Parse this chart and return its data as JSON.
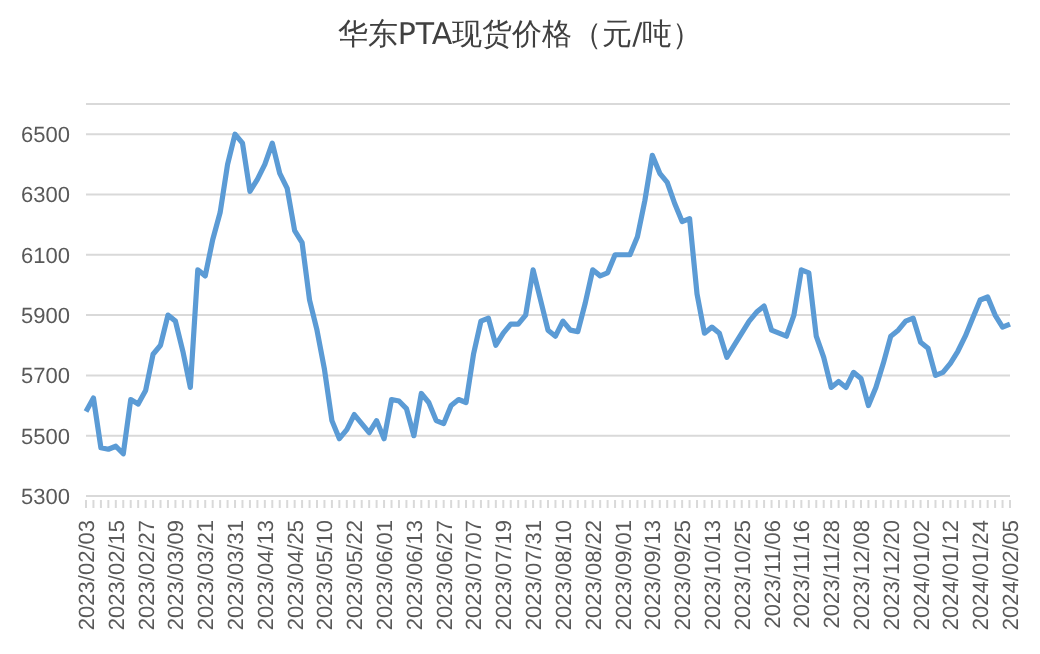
{
  "chart_data": {
    "type": "line",
    "title": "华东PTA现货价格（元/吨）",
    "categories": [
      "2023/02/03",
      null,
      null,
      null,
      "2023/02/15",
      null,
      null,
      null,
      "2023/02/27",
      null,
      null,
      null,
      "2023/03/09",
      null,
      null,
      null,
      "2023/03/21",
      null,
      null,
      null,
      "2023/03/31",
      null,
      null,
      null,
      "2023/04/13",
      null,
      null,
      null,
      "2023/04/25",
      null,
      null,
      null,
      "2023/05/10",
      null,
      null,
      null,
      "2023/05/22",
      null,
      null,
      null,
      "2023/06/01",
      null,
      null,
      null,
      "2023/06/13",
      null,
      null,
      null,
      "2023/06/27",
      null,
      null,
      null,
      "2023/07/07",
      null,
      null,
      null,
      "2023/07/19",
      null,
      null,
      null,
      "2023/07/31",
      null,
      null,
      null,
      "2023/08/10",
      null,
      null,
      null,
      "2023/08/22",
      null,
      null,
      null,
      "2023/09/01",
      null,
      null,
      null,
      "2023/09/13",
      null,
      null,
      null,
      "2023/09/25",
      null,
      null,
      null,
      "2023/10/13",
      null,
      null,
      null,
      "2023/10/25",
      null,
      null,
      null,
      "2023/11/06",
      null,
      null,
      null,
      "2023/11/16",
      null,
      null,
      null,
      "2023/11/28",
      null,
      null,
      null,
      "2023/12/08",
      null,
      null,
      null,
      "2023/12/20",
      null,
      null,
      null,
      "2024/01/02",
      null,
      null,
      null,
      "2024/01/12",
      null,
      null,
      null,
      "2024/01/24",
      null,
      null,
      null,
      "2024/02/05"
    ],
    "series": [
      {
        "color": "#5b9bd5",
        "values": [
          5580,
          5625,
          5460,
          5455,
          5465,
          5440,
          5620,
          5605,
          5650,
          5770,
          5800,
          5900,
          5880,
          5780,
          5660,
          6050,
          6030,
          6150,
          6240,
          6400,
          6500,
          6470,
          6310,
          6350,
          6400,
          6470,
          6370,
          6320,
          6180,
          6140,
          5950,
          5850,
          5720,
          5550,
          5490,
          5520,
          5570,
          5540,
          5510,
          5550,
          5490,
          5620,
          5615,
          5590,
          5500,
          5640,
          5610,
          5550,
          5540,
          5600,
          5620,
          5610,
          5770,
          5880,
          5890,
          5800,
          5840,
          5870,
          5870,
          5900,
          6050,
          5950,
          5850,
          5830,
          5880,
          5850,
          5845,
          5940,
          6050,
          6030,
          6040,
          6100,
          6100,
          6100,
          6160,
          6280,
          6430,
          6370,
          6340,
          6270,
          6210,
          6220,
          5970,
          5840,
          5860,
          5840,
          5760,
          5800,
          5840,
          5880,
          5910,
          5930,
          5850,
          5840,
          5830,
          5900,
          6050,
          6040,
          5830,
          5760,
          5660,
          5680,
          5660,
          5710,
          5690,
          5600,
          5660,
          5740,
          5830,
          5850,
          5880,
          5890,
          5810,
          5790,
          5700,
          5710,
          5740,
          5780,
          5830,
          5890,
          5950,
          5960,
          5900,
          5860,
          5870
        ]
      }
    ],
    "ylim": [
      5300,
      6600
    ],
    "yticks": [
      5300,
      5500,
      5700,
      5900,
      6100,
      6300,
      6500
    ],
    "grid": "y",
    "legend": false,
    "marker": "none",
    "line_style": "solid"
  }
}
